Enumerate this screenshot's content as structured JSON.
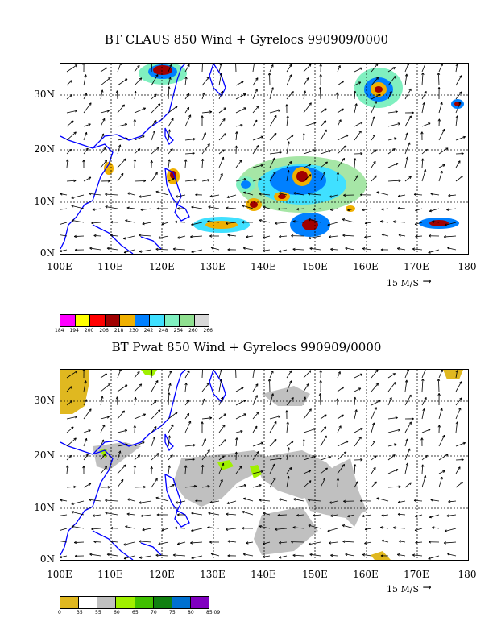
{
  "panels": [
    {
      "title": "BT CLAUS 850 Wind + Gyrelocs 990909/0000",
      "lat_labels": [
        "30N",
        "20N",
        "10N",
        "0N"
      ],
      "lon_labels": [
        "100E",
        "110E",
        "120E",
        "130E",
        "140E",
        "150E",
        "160E",
        "170E",
        "180"
      ],
      "ref_vector": "15 M/S",
      "colorbar": {
        "colors": [
          "#ff00ff",
          "#ffff00",
          "#ff0000",
          "#a00000",
          "#f0b000",
          "#0080ff",
          "#40e0ff",
          "#80f0c0",
          "#90e090",
          "#d8d8d8"
        ],
        "ticks": [
          "184",
          "194",
          "200",
          "206",
          "218",
          "230",
          "242",
          "248",
          "254",
          "260",
          "266"
        ]
      }
    },
    {
      "title": "BT Pwat 850 Wind + Gyrelocs 990909/0000",
      "lat_labels": [
        "30N",
        "20N",
        "10N",
        "0N"
      ],
      "lon_labels": [
        "100E",
        "110E",
        "120E",
        "130E",
        "140E",
        "150E",
        "160E",
        "170E",
        "180"
      ],
      "ref_vector": "15 M/S",
      "colorbar": {
        "colors": [
          "#e0b820",
          "#ffffff",
          "#c0c0c0",
          "#a0f000",
          "#40c000",
          "#108010",
          "#0070d0",
          "#8000c0"
        ],
        "ticks": [
          "0",
          "35",
          "55",
          "60",
          "65",
          "70",
          "75",
          "80",
          "85.09"
        ]
      }
    }
  ],
  "colors": {
    "coast": "#0000ff",
    "frame": "#000000",
    "grid": "#000000"
  }
}
